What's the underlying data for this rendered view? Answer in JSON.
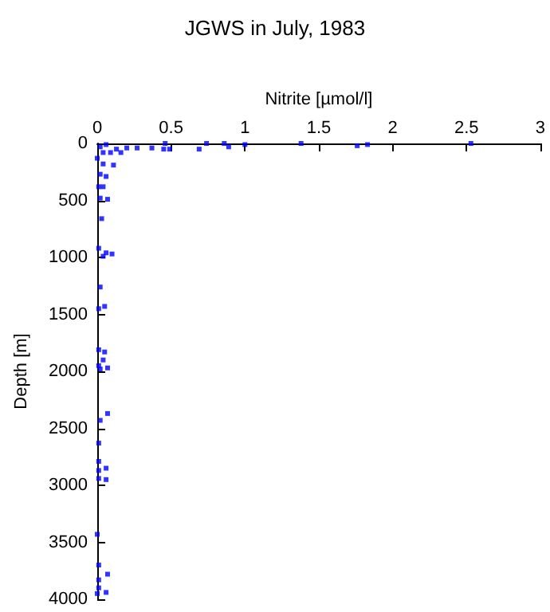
{
  "chart_data": {
    "type": "scatter",
    "title": "JGWS in July, 1983",
    "xlabel": "Nitrite [µmol/l]",
    "ylabel": "Depth [m]",
    "xlim": [
      0,
      3
    ],
    "xticks": [
      0,
      0.5,
      1,
      1.5,
      2,
      2.5,
      3
    ],
    "ylim": [
      4000,
      0
    ],
    "yticks": [
      0,
      500,
      1000,
      1500,
      2000,
      2500,
      3000,
      3500,
      4000
    ],
    "grid": false,
    "marker": "square",
    "series": [
      {
        "color": "#0000ff",
        "x": [
          0.46,
          0.74,
          0.86,
          0.89,
          1.0,
          1.38,
          1.76,
          1.83,
          2.53,
          0.45,
          0.49,
          0.69,
          0.37,
          0.27,
          0.2,
          0.13,
          0.09,
          0.16,
          0.04,
          0.02,
          0.06,
          0,
          0.04,
          0.11,
          0.02,
          0.06,
          0.01,
          0.04,
          0.02,
          0.07,
          0.03,
          0.01,
          0.06,
          0.1,
          0.04,
          0.02,
          0.05,
          0.01,
          0.01,
          0.05,
          0.04,
          0.01,
          0.07,
          0.02,
          0.07,
          0.02,
          0.01,
          0.01,
          0.06,
          0.01,
          0.01,
          0.06,
          0,
          0.01,
          0.07,
          0.01,
          0.01,
          0.06,
          0
        ],
        "values": [
          0,
          0,
          0,
          30,
          10,
          0,
          20,
          10,
          0,
          50,
          50,
          50,
          40,
          40,
          40,
          50,
          80,
          80,
          80,
          30,
          10,
          130,
          180,
          190,
          270,
          290,
          380,
          380,
          480,
          490,
          660,
          920,
          960,
          970,
          990,
          1260,
          1430,
          1450,
          1810,
          1830,
          1900,
          1950,
          1970,
          1980,
          2370,
          2430,
          2630,
          2790,
          2850,
          2870,
          2940,
          2950,
          3430,
          3700,
          3780,
          3830,
          3900,
          3940,
          3950
        ]
      }
    ]
  }
}
